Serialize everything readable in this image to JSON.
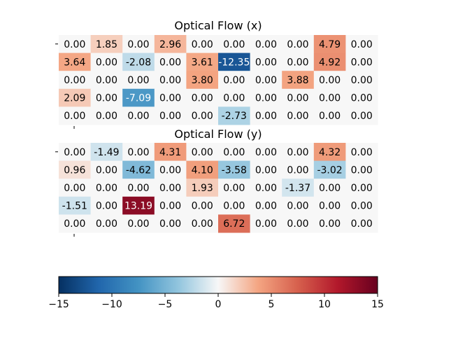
{
  "chart_data": [
    {
      "type": "heatmap",
      "title": "Optical Flow (x)",
      "rows": 5,
      "cols": 10,
      "values": [
        [
          "0.00",
          "1.85",
          "0.00",
          "2.96",
          "0.00",
          "0.00",
          "0.00",
          "0.00",
          "4.79",
          "0.00"
        ],
        [
          "3.64",
          "0.00",
          "-2.08",
          "0.00",
          "3.61",
          "-12.35",
          "0.00",
          "0.00",
          "4.92",
          "0.00"
        ],
        [
          "0.00",
          "0.00",
          "0.00",
          "0.00",
          "3.80",
          "0.00",
          "0.00",
          "3.88",
          "0.00",
          "0.00"
        ],
        [
          "2.09",
          "0.00",
          "-7.09",
          "0.00",
          "0.00",
          "0.00",
          "0.00",
          "0.00",
          "0.00",
          "0.00"
        ],
        [
          "0.00",
          "0.00",
          "0.00",
          "0.00",
          "0.00",
          "-2.73",
          "0.00",
          "0.00",
          "0.00",
          "0.00"
        ]
      ]
    },
    {
      "type": "heatmap",
      "title": "Optical Flow (y)",
      "rows": 5,
      "cols": 10,
      "values": [
        [
          "0.00",
          "-1.49",
          "0.00",
          "4.31",
          "0.00",
          "0.00",
          "0.00",
          "0.00",
          "4.32",
          "0.00"
        ],
        [
          "0.96",
          "0.00",
          "-4.62",
          "0.00",
          "4.10",
          "-3.58",
          "0.00",
          "0.00",
          "-3.02",
          "0.00"
        ],
        [
          "0.00",
          "0.00",
          "0.00",
          "0.00",
          "1.93",
          "0.00",
          "0.00",
          "-1.37",
          "0.00",
          "0.00"
        ],
        [
          "-1.51",
          "0.00",
          "13.19",
          "0.00",
          "0.00",
          "0.00",
          "0.00",
          "0.00",
          "0.00",
          "0.00"
        ],
        [
          "0.00",
          "0.00",
          "0.00",
          "0.00",
          "0.00",
          "6.72",
          "0.00",
          "0.00",
          "0.00",
          "0.00"
        ]
      ]
    }
  ],
  "colorbar": {
    "colormap": "RdBu_r",
    "vmin": -15,
    "vmax": 15,
    "ticks": [
      -15,
      -10,
      -5,
      0,
      5,
      10,
      15
    ],
    "tick_labels": [
      "−15",
      "−10",
      "−5",
      "0",
      "5",
      "10",
      "15"
    ]
  },
  "colors": {
    "zero_cell": "#f7f7f7",
    "text_dark": "#000000",
    "text_light": "#ffffff"
  }
}
